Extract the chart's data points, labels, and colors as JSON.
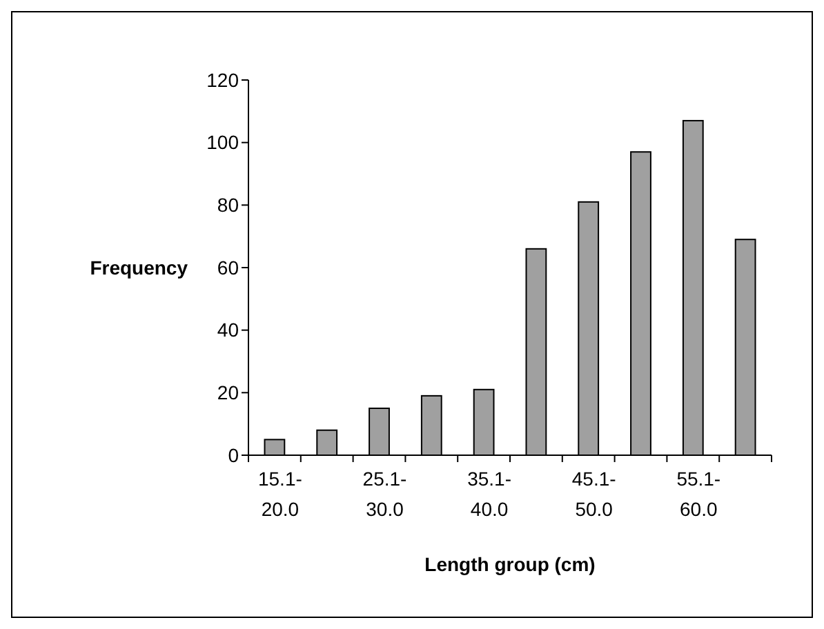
{
  "chart_data": {
    "type": "bar",
    "xlabel": "Length group (cm)",
    "ylabel": "Frequency",
    "categories": [
      "15.1-20.0",
      null,
      "25.1-30.0",
      null,
      "35.1-40.0",
      null,
      "45.1-50.0",
      null,
      "55.1-60.0",
      null
    ],
    "values": [
      5,
      8,
      15,
      19,
      21,
      66,
      81,
      97,
      107,
      69
    ],
    "color": "#a0a0a0",
    "ylim": [
      0,
      120
    ],
    "yticks": [
      0,
      20,
      40,
      60,
      80,
      100,
      120
    ],
    "grid": false
  }
}
